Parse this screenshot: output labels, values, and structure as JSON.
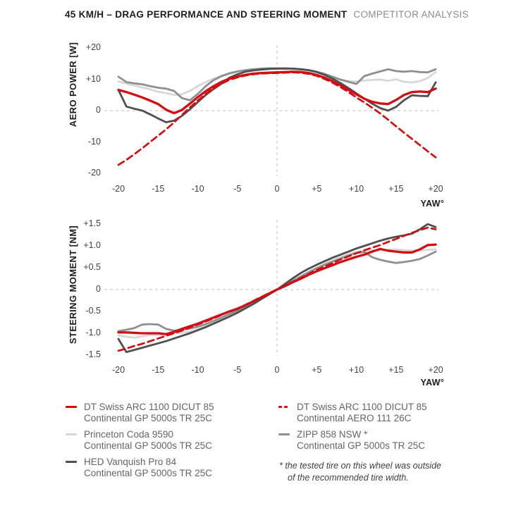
{
  "title": {
    "main": "45 KM/H – DRAG PERFORMANCE AND STEERING MOMENT",
    "suffix": "COMPETITOR ANALYSIS"
  },
  "colors": {
    "red": "#d10e14",
    "light_gray": "#d7d7d7",
    "mid_gray": "#8f8f8f",
    "dark_gray": "#4f4f4f",
    "grid": "#bfbfbf",
    "title_dark": "#1d1d1b",
    "title_gray": "#8c8c8c",
    "legend_text": "#646464",
    "footnote": "#3d3d3d"
  },
  "chart_data": [
    {
      "type": "line",
      "ylabel": "AERO POWER [W]",
      "xlabel": "YAW°",
      "xlim": [
        -20,
        20
      ],
      "ylim": [
        -20,
        20
      ],
      "grid": "zero-lines-only-dashed",
      "legend_position": "below",
      "x_ticks": [
        "-20",
        "-15",
        "-10",
        "-5",
        "0",
        "+5",
        "+10",
        "+15",
        "+20"
      ],
      "y_ticks": [
        "+20",
        "+10",
        "0",
        "-10",
        "-20"
      ],
      "y_tick_values": [
        20,
        10,
        0,
        -10,
        -20
      ],
      "x_start": -20,
      "x_step": 1,
      "series": [
        {
          "name": "princeton-coda-9590",
          "color_key": "light_gray",
          "dashed": false,
          "width": 2.8,
          "values": [
            9.3,
            8.6,
            8.0,
            7.4,
            6.8,
            6.0,
            5.6,
            5.0,
            5.2,
            6.3,
            7.8,
            9.1,
            10.2,
            11.1,
            11.8,
            12.4,
            12.8,
            13.1,
            13.3,
            13.4,
            13.4,
            13.4,
            13.3,
            13.1,
            12.8,
            12.3,
            11.5,
            10.6,
            9.8,
            9.4,
            9.3,
            9.6,
            9.8,
            9.9,
            9.5,
            10.0,
            9.2,
            9.0,
            9.4,
            10.4,
            12.3
          ]
        },
        {
          "name": "zipp-858-nsw",
          "color_key": "mid_gray",
          "dashed": false,
          "width": 2.8,
          "values": [
            10.8,
            9.1,
            8.7,
            8.4,
            7.8,
            7.3,
            7.0,
            6.3,
            4.0,
            3.3,
            5.3,
            7.8,
            9.7,
            11.0,
            11.9,
            12.5,
            12.9,
            13.2,
            13.4,
            13.5,
            13.5,
            13.5,
            13.4,
            13.2,
            12.9,
            12.4,
            11.7,
            10.8,
            9.9,
            9.2,
            8.5,
            11.0,
            11.8,
            12.5,
            13.2,
            12.6,
            12.4,
            12.6,
            12.3,
            12.2,
            13.2
          ]
        },
        {
          "name": "hed-vanquish-pro-84",
          "color_key": "dark_gray",
          "dashed": false,
          "width": 2.8,
          "values": [
            6.6,
            1.3,
            0.6,
            0.0,
            -1.2,
            -2.5,
            -3.7,
            -3.2,
            -1.7,
            0.4,
            2.7,
            5.0,
            6.9,
            8.6,
            10.5,
            11.6,
            12.4,
            12.8,
            13.1,
            13.3,
            13.4,
            13.4,
            13.4,
            13.2,
            12.9,
            12.3,
            11.4,
            10.2,
            8.8,
            7.2,
            5.5,
            3.8,
            2.2,
            0.8,
            0.0,
            1.2,
            3.3,
            4.9,
            4.7,
            4.6,
            9.0
          ]
        },
        {
          "name": "dt-swiss-arc-1100-dicut-85-aero-111",
          "color_key": "red",
          "dashed": true,
          "width": 2.7,
          "values": [
            -17.3,
            -15.7,
            -13.9,
            -12.0,
            -10.0,
            -8.0,
            -6.0,
            -3.8,
            -1.4,
            1.0,
            3.2,
            5.3,
            7.1,
            8.6,
            9.8,
            10.6,
            11.2,
            11.6,
            11.8,
            11.9,
            12.0,
            12.1,
            12.2,
            12.1,
            11.7,
            11.1,
            10.1,
            8.9,
            7.5,
            5.9,
            4.2,
            2.6,
            0.9,
            -0.9,
            -2.9,
            -5.0,
            -7.0,
            -9.0,
            -11.0,
            -13.0,
            -14.9
          ]
        },
        {
          "name": "dt-swiss-arc-1100-dicut-85-gp-5000s",
          "color_key": "red",
          "dashed": false,
          "width": 3.3,
          "values": [
            6.6,
            5.9,
            5.1,
            4.2,
            3.2,
            2.1,
            0.3,
            -0.8,
            0.2,
            2.2,
            4.3,
            6.2,
            7.8,
            9.2,
            10.2,
            10.9,
            11.4,
            11.8,
            12.0,
            12.1,
            12.2,
            12.3,
            12.4,
            12.3,
            12.0,
            11.4,
            10.5,
            9.4,
            8.1,
            6.6,
            5.2,
            3.8,
            2.8,
            2.3,
            2.1,
            3.4,
            5.0,
            5.9,
            6.1,
            5.9,
            7.0
          ]
        }
      ]
    },
    {
      "type": "line",
      "ylabel": "STEERING MOMENT [NM]",
      "xlabel": "YAW°",
      "xlim": [
        -20,
        20
      ],
      "ylim": [
        -1.5,
        1.5
      ],
      "grid": "zero-lines-only-dashed",
      "legend_position": "below",
      "x_ticks": [
        "-20",
        "-15",
        "-10",
        "-5",
        "0",
        "+5",
        "+10",
        "+15",
        "+20"
      ],
      "y_ticks": [
        "+1.5",
        "+1.0",
        "+0.5",
        "0",
        "-0.5",
        "-1.0",
        "-1.5"
      ],
      "y_tick_values": [
        1.5,
        1.0,
        0.5,
        0,
        -0.5,
        -1.0,
        -1.5
      ],
      "x_start": -20,
      "x_step": 1,
      "series": [
        {
          "name": "princeton-coda-9590",
          "color_key": "light_gray",
          "dashed": false,
          "width": 2.8,
          "values": [
            -1.05,
            -1.08,
            -1.1,
            -1.07,
            -1.04,
            -1.04,
            -1.03,
            -1.0,
            -0.99,
            -0.96,
            -0.91,
            -0.84,
            -0.76,
            -0.68,
            -0.59,
            -0.5,
            -0.4,
            -0.3,
            -0.2,
            -0.1,
            0.0,
            0.1,
            0.2,
            0.3,
            0.4,
            0.5,
            0.59,
            0.67,
            0.74,
            0.81,
            0.86,
            0.88,
            0.89,
            0.9,
            0.91,
            0.92,
            0.9,
            0.89,
            0.9,
            0.91,
            0.92
          ]
        },
        {
          "name": "zipp-858-nsw",
          "color_key": "mid_gray",
          "dashed": false,
          "width": 2.8,
          "values": [
            -0.95,
            -0.92,
            -0.88,
            -0.8,
            -0.79,
            -0.8,
            -0.9,
            -0.94,
            -0.92,
            -0.89,
            -0.85,
            -0.79,
            -0.72,
            -0.64,
            -0.56,
            -0.48,
            -0.39,
            -0.3,
            -0.2,
            -0.1,
            0.0,
            0.1,
            0.2,
            0.3,
            0.4,
            0.49,
            0.57,
            0.64,
            0.71,
            0.78,
            0.84,
            0.86,
            0.74,
            0.68,
            0.64,
            0.61,
            0.63,
            0.66,
            0.7,
            0.78,
            0.87
          ]
        },
        {
          "name": "hed-vanquish-pro-84",
          "color_key": "dark_gray",
          "dashed": false,
          "width": 2.8,
          "values": [
            -1.13,
            -1.43,
            -1.38,
            -1.33,
            -1.28,
            -1.23,
            -1.18,
            -1.12,
            -1.06,
            -1.0,
            -0.93,
            -0.86,
            -0.78,
            -0.7,
            -0.62,
            -0.53,
            -0.43,
            -0.33,
            -0.22,
            -0.11,
            0.0,
            0.13,
            0.26,
            0.38,
            0.48,
            0.57,
            0.65,
            0.73,
            0.8,
            0.87,
            0.94,
            1.0,
            1.06,
            1.12,
            1.17,
            1.21,
            1.24,
            1.28,
            1.38,
            1.5,
            1.43
          ]
        },
        {
          "name": "dt-swiss-arc-1100-dicut-85-aero-111",
          "color_key": "red",
          "dashed": true,
          "width": 2.7,
          "values": [
            -1.4,
            -1.35,
            -1.29,
            -1.24,
            -1.18,
            -1.12,
            -1.06,
            -1.0,
            -0.94,
            -0.87,
            -0.8,
            -0.73,
            -0.66,
            -0.58,
            -0.5,
            -0.43,
            -0.35,
            -0.26,
            -0.17,
            -0.08,
            0.0,
            0.09,
            0.18,
            0.27,
            0.36,
            0.45,
            0.53,
            0.61,
            0.69,
            0.76,
            0.83,
            0.9,
            0.96,
            1.02,
            1.09,
            1.16,
            1.23,
            1.3,
            1.36,
            1.42,
            1.38
          ]
        },
        {
          "name": "dt-swiss-arc-1100-dicut-85-gp-5000s",
          "color_key": "red",
          "dashed": false,
          "width": 3.3,
          "values": [
            -0.98,
            -0.98,
            -0.99,
            -1.0,
            -1.0,
            -1.0,
            -1.02,
            -0.97,
            -0.9,
            -0.84,
            -0.78,
            -0.71,
            -0.64,
            -0.57,
            -0.5,
            -0.44,
            -0.36,
            -0.27,
            -0.18,
            -0.09,
            0.0,
            0.08,
            0.17,
            0.25,
            0.34,
            0.42,
            0.49,
            0.56,
            0.63,
            0.69,
            0.75,
            0.8,
            0.87,
            0.93,
            0.89,
            0.87,
            0.85,
            0.85,
            0.92,
            1.02,
            1.03
          ]
        }
      ]
    }
  ],
  "legend": {
    "columns": [
      {
        "items": [
          {
            "key": "dt-swiss-arc-1100-gp5000s",
            "name": "DT Swiss ARC 1100 DICUT 85",
            "tire": "Continental GP 5000s TR 25C",
            "color_key": "red",
            "dashed": false
          },
          {
            "key": "princeton-coda-9590",
            "name": "Princeton Coda 9590",
            "tire": "Continental GP 5000s TR 25C",
            "color_key": "light_gray",
            "dashed": false
          },
          {
            "key": "hed-vanquish-pro-84",
            "name": "HED Vanquish Pro 84",
            "tire": "Continental GP 5000s TR 25C",
            "color_key": "dark_gray",
            "dashed": false
          }
        ]
      },
      {
        "items": [
          {
            "key": "dt-swiss-arc-1100-aero111",
            "name": "DT Swiss ARC 1100 DICUT 85",
            "tire": "Continental AERO 111 26C",
            "color_key": "red",
            "dashed": true
          },
          {
            "key": "zipp-858-nsw",
            "name": "ZIPP 858 NSW *",
            "tire": "Continental GP 5000s TR 25C",
            "color_key": "mid_gray",
            "dashed": false
          }
        ]
      }
    ],
    "footnote": {
      "line1": "* the tested tire on this wheel was outside",
      "line2": "of the recommended tire width."
    }
  }
}
